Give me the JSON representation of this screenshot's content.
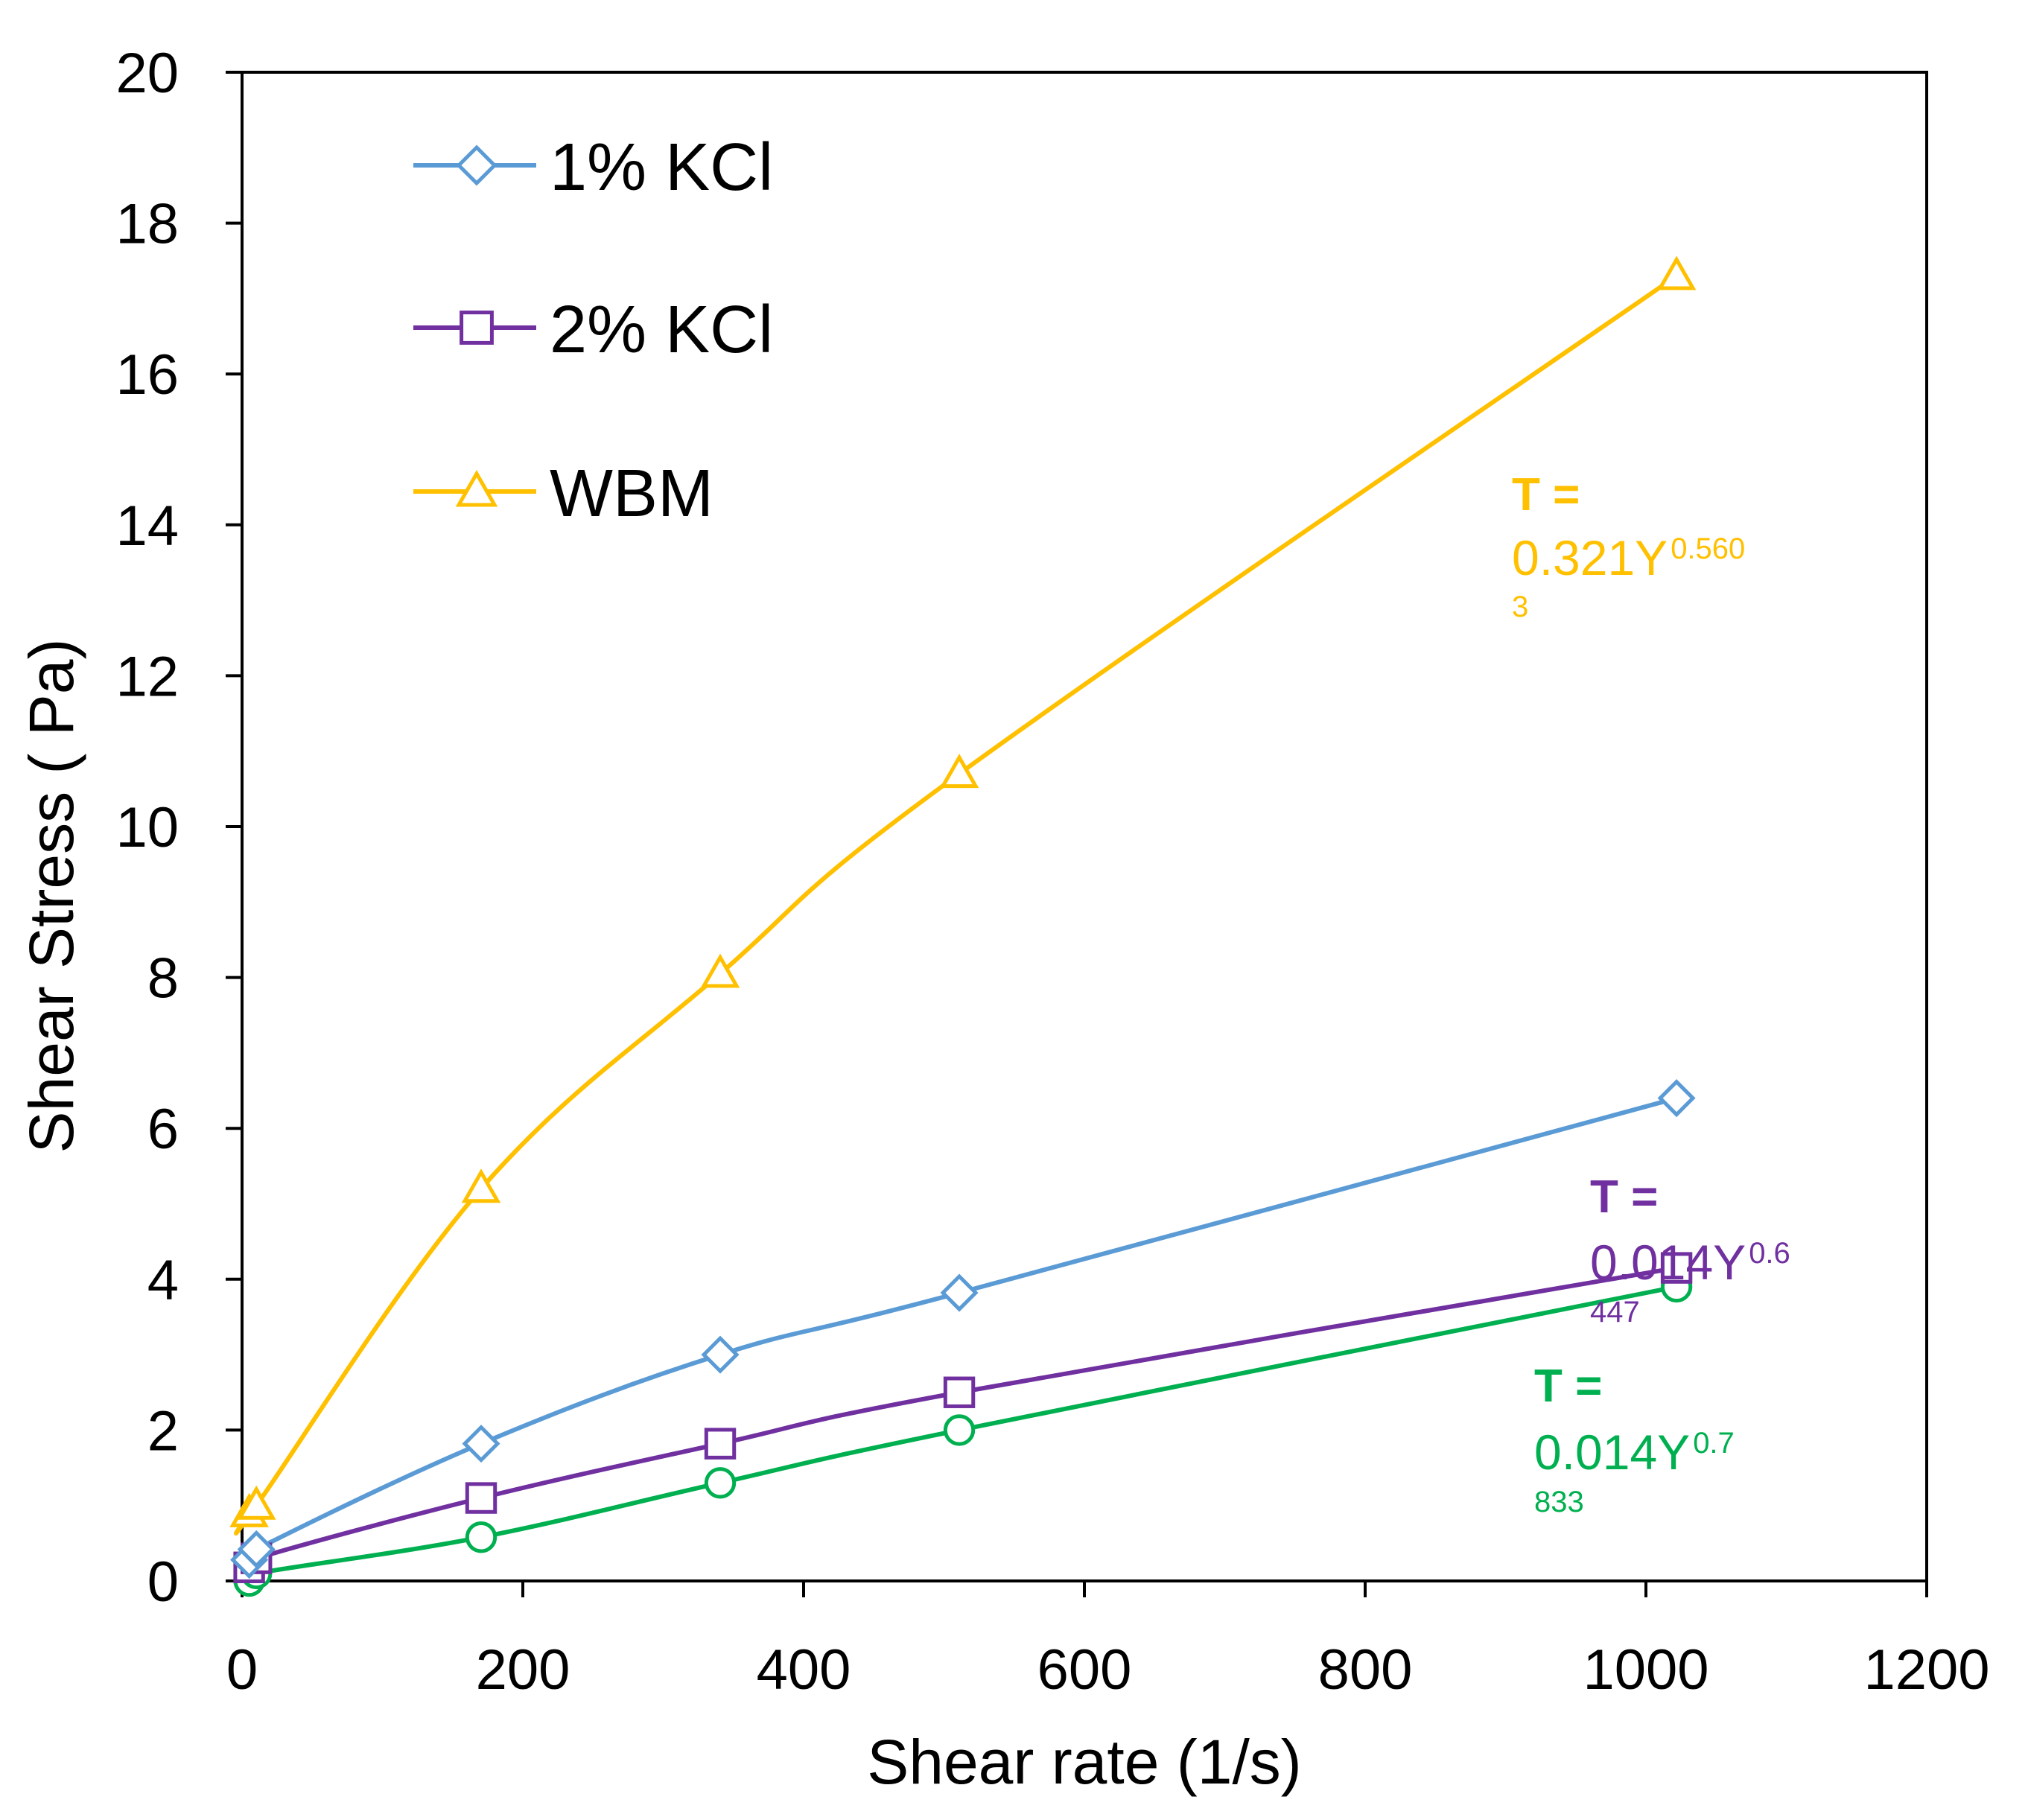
{
  "chart_data": {
    "type": "line",
    "title": "",
    "xlabel": "Shear rate (1/s)",
    "ylabel": "Shear Stress ( Pa)",
    "xlim": [
      0,
      1200
    ],
    "ylim": [
      0,
      20
    ],
    "x_ticks": [
      "0",
      "200",
      "400",
      "600",
      "800",
      "1000",
      "1200"
    ],
    "y_ticks": [
      "0",
      "2",
      "4",
      "6",
      "8",
      "10",
      "12",
      "14",
      "16",
      "18",
      "20"
    ],
    "grid": false,
    "legend_position": "top-left",
    "x": [
      5.1,
      10.2,
      170.3,
      340.6,
      510.9,
      1021.8
    ],
    "series": [
      {
        "name": "1% KCl",
        "marker": "diamond",
        "color": "#5B9BD5",
        "values": [
          0.28,
          0.42,
          1.82,
          3.0,
          3.82,
          6.4
        ]
      },
      {
        "name": "2% KCl",
        "marker": "square",
        "color": "#7030A0",
        "values": [
          0.18,
          0.3,
          1.1,
          1.82,
          2.5,
          4.15
        ]
      },
      {
        "name": "WBM",
        "marker": "triangle",
        "color": "#FFC000",
        "values": [
          0.9,
          1.0,
          5.2,
          8.05,
          10.7,
          17.3
        ]
      },
      {
        "name": "",
        "marker": "circle",
        "color": "#00B050",
        "values": [
          0.0,
          0.1,
          0.58,
          1.3,
          2.0,
          3.9
        ]
      }
    ],
    "annotations": [
      {
        "id": "wbm",
        "color": "#FFC000",
        "line1": "T =",
        "coef": "0.321Y",
        "exp": "0.560",
        "sub": "3"
      },
      {
        "id": "kcl2",
        "color": "#7030A0",
        "line1": "T =",
        "coef": "0.014Y",
        "exp": "0.6",
        "sub": "447"
      },
      {
        "id": "green",
        "color": "#00B050",
        "line1": "T =",
        "coef": "0.014Y",
        "exp": "0.7",
        "sub": "833"
      }
    ]
  }
}
